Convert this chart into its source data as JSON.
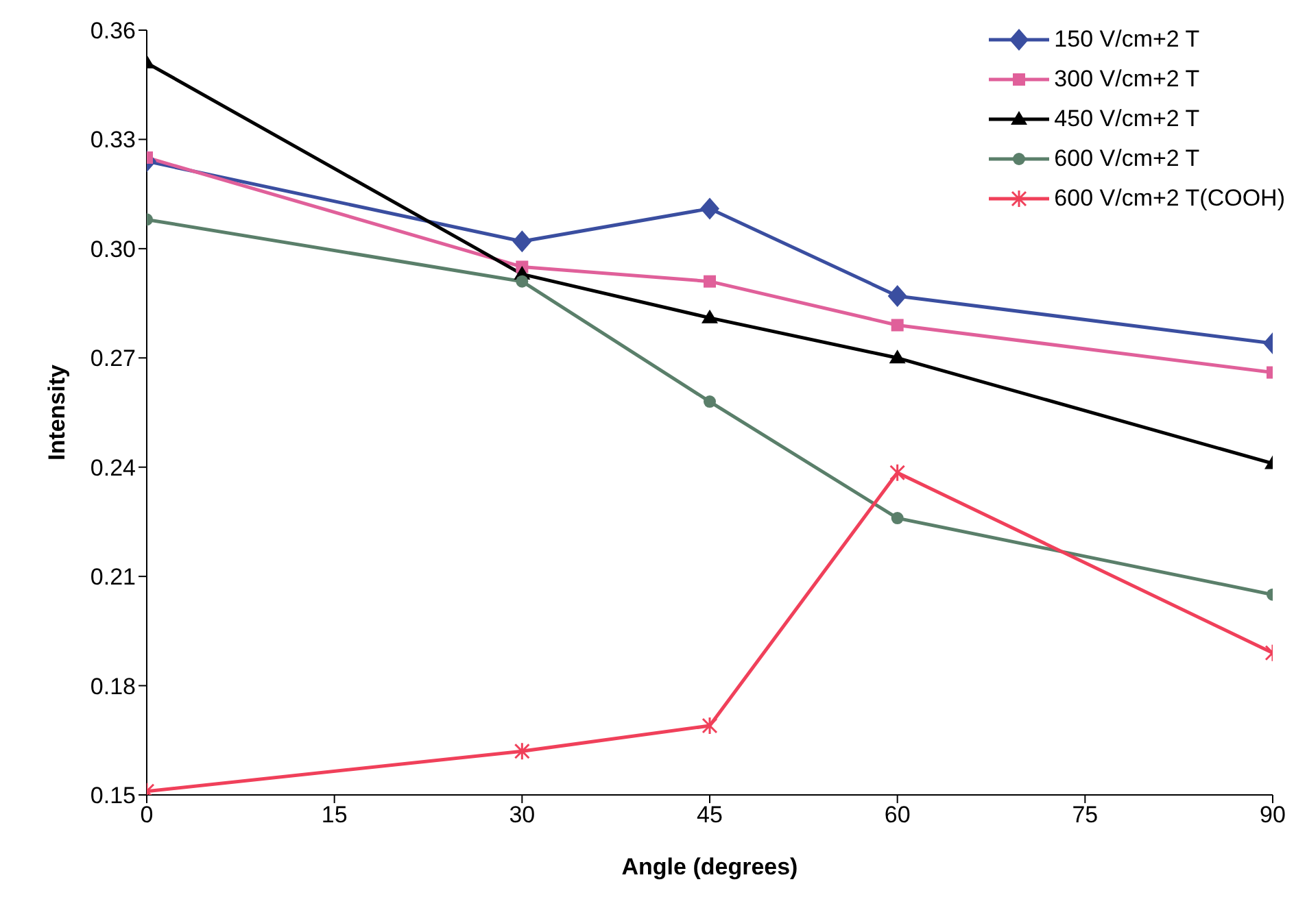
{
  "chart_data": {
    "type": "line",
    "xlabel": "Angle (degrees)",
    "ylabel": "Intensity",
    "x": [
      0,
      30,
      45,
      60,
      90
    ],
    "xlim": [
      0,
      90
    ],
    "xticks": [
      0,
      15,
      30,
      45,
      60,
      75,
      90
    ],
    "ylim": [
      0.15,
      0.36
    ],
    "yticks": [
      {
        "value": 0.15,
        "label": "0.15"
      },
      {
        "value": 0.18,
        "label": "0.18"
      },
      {
        "value": 0.21,
        "label": "0.21"
      },
      {
        "value": 0.24,
        "label": "0.24"
      },
      {
        "value": 0.27,
        "label": "0.27"
      },
      {
        "value": 0.3,
        "label": "0.30"
      },
      {
        "value": 0.33,
        "label": "0.33"
      },
      {
        "value": 0.36,
        "label": "0.36"
      }
    ],
    "grid": false,
    "legend": "top right",
    "line_style": "solid",
    "series": [
      {
        "name": "150 V/cm+2 T",
        "color": "#3a4ea0",
        "marker": "diamond",
        "values": [
          0.324,
          0.302,
          0.311,
          0.287,
          0.274
        ]
      },
      {
        "name": "300 V/cm+2 T",
        "color": "#e0609a",
        "marker": "square",
        "values": [
          0.325,
          0.295,
          0.291,
          0.279,
          0.266
        ]
      },
      {
        "name": "450 V/cm+2 T",
        "color": "#000000",
        "marker": "triangle",
        "values": [
          0.351,
          0.293,
          0.281,
          0.27,
          0.241
        ]
      },
      {
        "name": "600 V/cm+2 T",
        "color": "#5a7f6a",
        "marker": "circle",
        "values": [
          0.308,
          0.291,
          0.258,
          0.226,
          0.205
        ]
      },
      {
        "name": "600 V/cm+2 T(COOH)",
        "color": "#f0405a",
        "marker": "cross",
        "values": [
          0.151,
          0.162,
          0.169,
          0.2385,
          0.189
        ]
      }
    ]
  }
}
